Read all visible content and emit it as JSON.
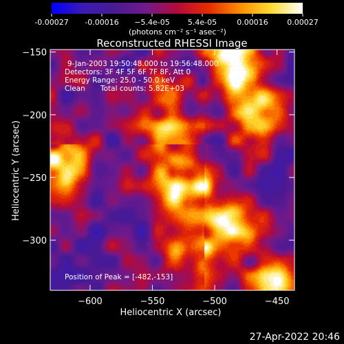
{
  "chart_data": {
    "type": "heatmap",
    "title": "Reconstructed RHESSI Image",
    "xlabel": "Heliocentric X (arcsec)",
    "ylabel": "Heliocentric Y (arcsec)",
    "xlim": [
      -632,
      -436
    ],
    "ylim": [
      -340,
      -148
    ],
    "x_ticks": [
      -600,
      -550,
      -500,
      -450
    ],
    "y_ticks": [
      -300,
      -250,
      -200,
      -150
    ],
    "x_tick_labels": [
      "−600",
      "−550",
      "−500",
      "−450"
    ],
    "y_tick_labels": [
      "−300",
      "−250",
      "−200",
      "−150"
    ],
    "colorbar": {
      "range": [
        -0.00027,
        0.00027
      ],
      "tick_labels": [
        "-0.00027",
        "-0.00016",
        "−5.4e-05",
        "5.4e-05",
        "0.00016",
        "0.00027"
      ],
      "label": "(photons cm⁻² s⁻¹ asec⁻²)",
      "colors": [
        "#0000ff",
        "#3b1ab4",
        "#4a1a94",
        "#701a8c",
        "#b40a3c",
        "#e62a00",
        "#ff8c00",
        "#ffdc32",
        "#ffffff"
      ]
    },
    "annotations": {
      "time_range": "9-Jan-2003 19:50:48.000 to 19:56:48.000",
      "detectors": "Detectors: 3F 4F 5F 6F 7F 8F, Att 0",
      "energy": "Energy Range: 25.0 - 50.0 keV",
      "clean": "Clean",
      "counts": "Total counts: 5.82E+03",
      "peak": "Position of Peak = [-482,-153]"
    },
    "peak": {
      "x": -482,
      "y": -153
    },
    "bright_features": [
      {
        "x": -540,
        "y": -200,
        "level": 0.85
      },
      {
        "x": -525,
        "y": -250,
        "level": 0.95
      },
      {
        "x": -490,
        "y": -290,
        "level": 0.8
      },
      {
        "x": -482,
        "y": -153,
        "level": 1.0
      },
      {
        "x": -470,
        "y": -200,
        "level": 0.7
      },
      {
        "x": -620,
        "y": -240,
        "level": 0.8
      },
      {
        "x": -520,
        "y": -320,
        "level": 0.6
      },
      {
        "x": -455,
        "y": -330,
        "level": 0.7
      }
    ]
  },
  "footer": {
    "timestamp": "27-Apr-2022 20:46"
  }
}
